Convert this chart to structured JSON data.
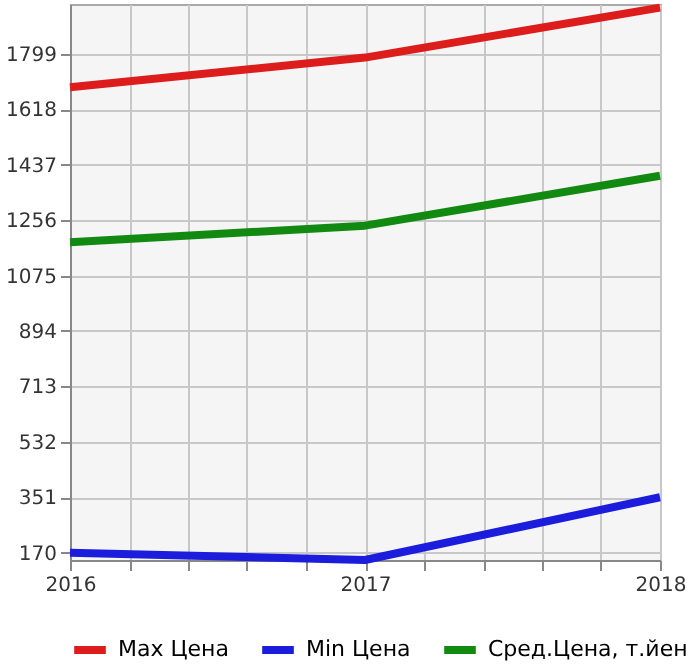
{
  "chart_data": {
    "type": "line",
    "x": [
      2016,
      2017,
      2018
    ],
    "xlim": [
      2016,
      2018
    ],
    "xticks": [
      2016,
      {
        "value": 2016.2,
        "label": null
      },
      {
        "value": 2016.4,
        "label": null
      },
      {
        "value": 2016.6,
        "label": null
      },
      {
        "value": 2016.8,
        "label": null
      },
      2017,
      {
        "value": 2017.2,
        "label": null
      },
      {
        "value": 2017.4,
        "label": null
      },
      {
        "value": 2017.6,
        "label": null
      },
      {
        "value": 2017.8,
        "label": null
      },
      2018
    ],
    "ylim": [
      146,
      1962
    ],
    "yticks": [
      170,
      351,
      532,
      713,
      894,
      1075,
      1256,
      1437,
      1618,
      1799
    ],
    "grid": true,
    "legend": "bottom",
    "marker": "none",
    "line_style": "solid",
    "series": [
      {
        "name": "Max Цена",
        "color": "#dd1c1c",
        "values": [
          1690,
          1787,
          1950
        ]
      },
      {
        "name": "Min Цена",
        "color": "#1c1cdd",
        "values": [
          170,
          146,
          351
        ]
      },
      {
        "name": "Сред.Цена, т.йен",
        "color": "#128a12",
        "values": [
          1184,
          1238,
          1401
        ]
      }
    ]
  }
}
